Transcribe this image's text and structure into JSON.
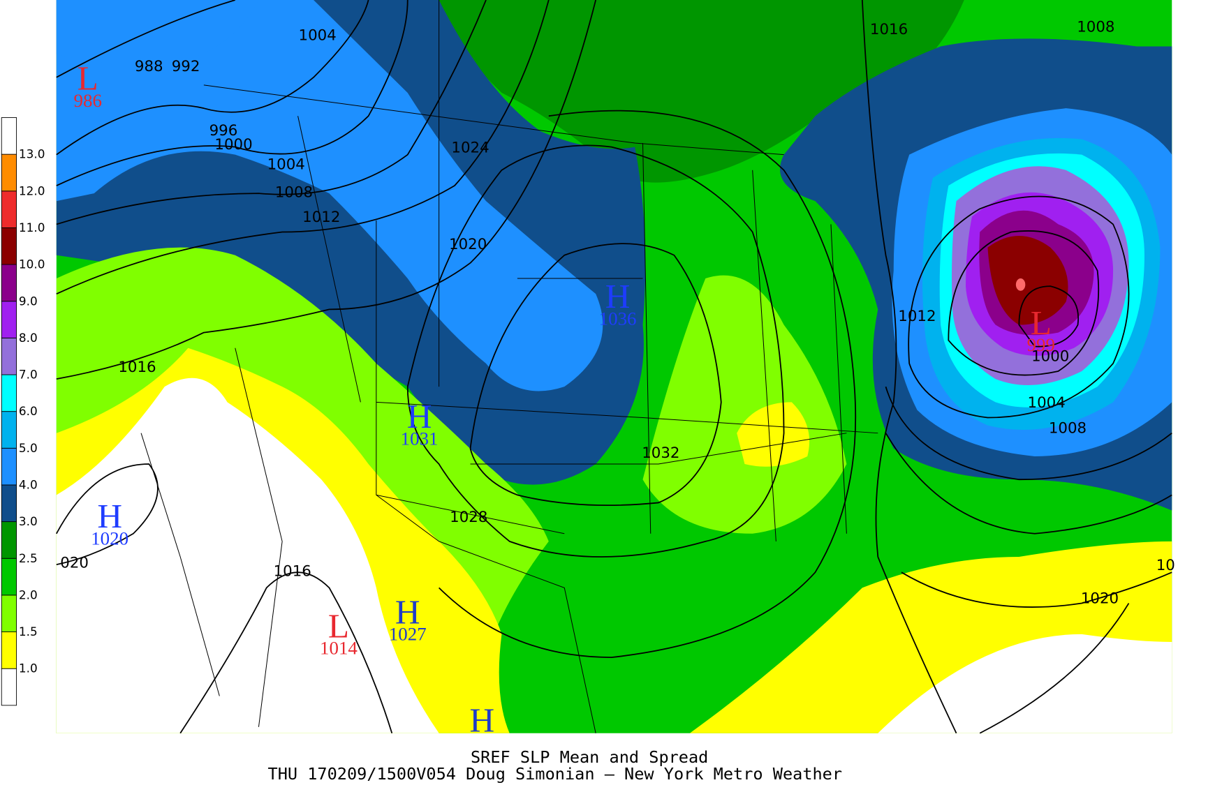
{
  "title": "SREF SLP Mean and Spread",
  "subtitle": "THU 170209/1500V054 Doug Simonian – New York Metro Weather",
  "colorbar": {
    "labels": [
      "1.0",
      "1.5",
      "2.0",
      "2.5",
      "3.0",
      "4.0",
      "5.0",
      "6.0",
      "7.0",
      "8.0",
      "9.0",
      "10.0",
      "11.0",
      "12.0",
      "13.0"
    ],
    "colors": [
      "#ffffff",
      "#ffff00",
      "#80ff00",
      "#00c800",
      "#009600",
      "#104e8b",
      "#1e90ff",
      "#00b2ee",
      "#00ffff",
      "#9370db",
      "#a020f0",
      "#8b008b",
      "#8b0000",
      "#ee2c2c",
      "#ff8c00",
      "#ffffff"
    ]
  },
  "pressure_centers": [
    {
      "letter": "L",
      "value": "986",
      "color": "#e8282f"
    },
    {
      "letter": "H",
      "value": "1036",
      "color": "#1e3cff"
    },
    {
      "letter": "H",
      "value": "1031",
      "color": "#1e3cff"
    },
    {
      "letter": "H",
      "value": "1020",
      "color": "#1e3cff"
    },
    {
      "letter": "L",
      "value": "1014",
      "color": "#e8282f"
    },
    {
      "letter": "H",
      "value": "1027",
      "color": "#1e3cc8"
    },
    {
      "letter": "L",
      "value": "999",
      "color": "#e8282f"
    },
    {
      "letter": "H",
      "value": null,
      "color": "#1e3cc8"
    }
  ],
  "isobar_labels": [
    "1004",
    "988",
    "992",
    "996",
    "1000",
    "1004",
    "1008",
    "1012",
    "1016",
    "1024",
    "1020",
    "1028",
    "1032",
    "1016",
    "1008",
    "1012",
    "1000",
    "1004",
    "1008",
    "1020",
    "1016",
    "020",
    "10"
  ]
}
